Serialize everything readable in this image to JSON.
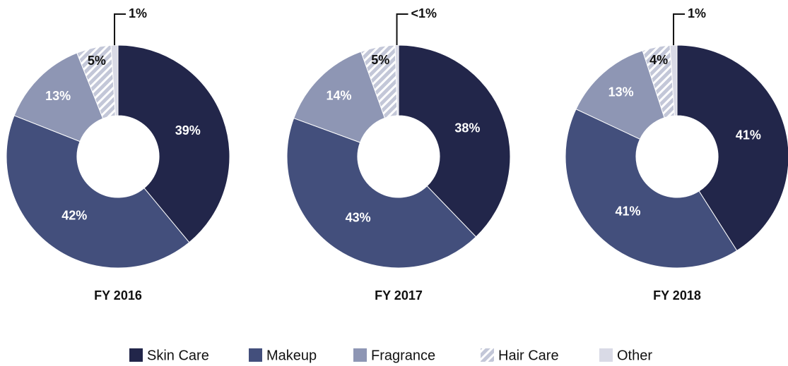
{
  "chart_data": [
    {
      "type": "donut",
      "title": "FY 2016",
      "values": [
        39,
        42,
        13,
        5,
        1
      ],
      "value_labels": [
        "39%",
        "42%",
        "13%",
        "5%",
        "1%"
      ]
    },
    {
      "type": "donut",
      "title": "FY 2017",
      "values": [
        38,
        43,
        14,
        5,
        0.5
      ],
      "value_labels": [
        "38%",
        "43%",
        "14%",
        "5%",
        "<1%"
      ]
    },
    {
      "type": "donut",
      "title": "FY 2018",
      "values": [
        41,
        41,
        13,
        4,
        1
      ],
      "value_labels": [
        "41%",
        "41%",
        "13%",
        "4%",
        "1%"
      ]
    }
  ],
  "legend": {
    "categories": [
      "Skin Care",
      "Makeup",
      "Fragrance",
      "Hair Care",
      "Other"
    ],
    "colors": [
      "#22264a",
      "#434f7c",
      "#8e96b4",
      "#c3c7d8",
      "#d9dae6"
    ],
    "hatched": [
      false,
      false,
      false,
      true,
      false
    ]
  }
}
